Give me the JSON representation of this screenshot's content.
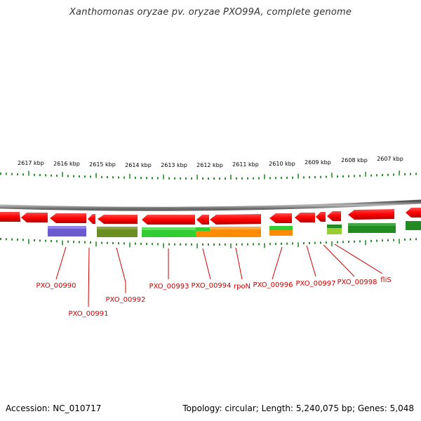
{
  "title": "Xanthomonas oryzae pv. oryzae PXO99A, complete genome",
  "footer": {
    "accession": "Accession: NC_010717",
    "topology": "Topology: circular; Length: 5,240,075 bp; Genes: 5,048"
  },
  "map": {
    "kbp_labels": [
      "2617 kbp",
      "2616 kbp",
      "2615 kbp",
      "2614 kbp",
      "2613 kbp",
      "2612 kbp",
      "2611 kbp",
      "2610 kbp",
      "2609 kbp",
      "2608 kbp",
      "2607 kbp"
    ],
    "gene_labels": [
      "PXO_00990",
      "PXO_00991",
      "PXO_00992",
      "PXO_00993",
      "PXO_00994",
      "rpoN",
      "PXO_00996",
      "PXO_00997",
      "PXO_00998",
      "fliS"
    ],
    "colors": {
      "cds": "#ff0000",
      "backbone": "#888888",
      "tick": "#2e8b2e",
      "label": "#cc0000",
      "purple": "#6a5acd",
      "olive": "#6b8e23",
      "green": "#32cd32",
      "orange": "#ff8c00",
      "yellowgreen": "#9acd32",
      "darkgreen": "#228b22"
    }
  }
}
